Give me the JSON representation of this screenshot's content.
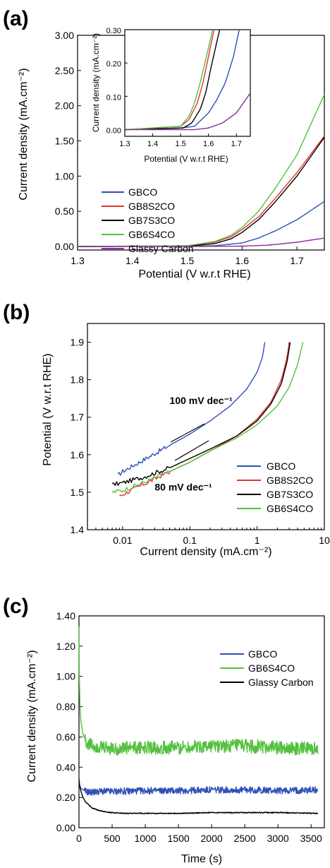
{
  "colors": {
    "GBCO": "#3050b8",
    "GB8S2CO": "#e83030",
    "GB7S3CO": "#000000",
    "GB6S4CO": "#55c040",
    "Glassy Carbon (a)": "#8a2a9a",
    "Glassy Carbon (c)": "#000000"
  },
  "chart_data": [
    {
      "panel_label": "(a)",
      "type": "line",
      "xlabel": "Potential (V w.r.t RHE)",
      "ylabel": "Current density (mA.cm⁻²)",
      "xlim": [
        1.3,
        1.75
      ],
      "ylim": [
        -0.05,
        3.0
      ],
      "xticks": [
        "1.3",
        "1.4",
        "1.5",
        "1.6",
        "1.7"
      ],
      "xtick_values": [
        1.3,
        1.4,
        1.5,
        1.6,
        1.7
      ],
      "yticks": [
        "0.00",
        "0.50",
        "1.00",
        "1.50",
        "2.00",
        "2.50",
        "3.00"
      ],
      "ytick_values": [
        0,
        0.5,
        1.0,
        1.5,
        2.0,
        2.5,
        3.0
      ],
      "legend_position": "middle-left",
      "series": [
        {
          "name": "GBCO",
          "x": [
            1.3,
            1.5,
            1.55,
            1.6,
            1.63,
            1.66,
            1.7,
            1.75
          ],
          "y": [
            0.0,
            0.005,
            0.01,
            0.05,
            0.12,
            0.22,
            0.38,
            0.64
          ]
        },
        {
          "name": "GB8S2CO",
          "x": [
            1.3,
            1.5,
            1.55,
            1.58,
            1.6,
            1.63,
            1.66,
            1.7,
            1.75
          ],
          "y": [
            0.0,
            0.01,
            0.06,
            0.14,
            0.24,
            0.42,
            0.68,
            1.05,
            1.57
          ]
        },
        {
          "name": "GB7S3CO",
          "x": [
            1.3,
            1.5,
            1.55,
            1.58,
            1.6,
            1.63,
            1.66,
            1.7,
            1.75
          ],
          "y": [
            0.0,
            0.005,
            0.04,
            0.11,
            0.2,
            0.38,
            0.63,
            1.0,
            1.55
          ]
        },
        {
          "name": "GB6S4CO",
          "x": [
            1.3,
            1.5,
            1.55,
            1.58,
            1.6,
            1.63,
            1.66,
            1.7,
            1.75
          ],
          "y": [
            0.0,
            0.01,
            0.07,
            0.16,
            0.27,
            0.5,
            0.82,
            1.3,
            2.16
          ]
        },
        {
          "name": "Glassy Carbon",
          "x": [
            1.3,
            1.5,
            1.6,
            1.65,
            1.7,
            1.75
          ],
          "y": [
            0.0,
            0.0,
            0.005,
            0.02,
            0.06,
            0.12
          ]
        }
      ],
      "inset": {
        "xlabel": "Potential (V w.r.t RHE)",
        "ylabel": "Current density (mA.cm⁻²)",
        "xlim": [
          1.3,
          1.75
        ],
        "ylim": [
          -0.02,
          0.3
        ],
        "xticks": [
          "1.3",
          "1.4",
          "1.5",
          "1.6",
          "1.7"
        ],
        "xtick_values": [
          1.3,
          1.4,
          1.5,
          1.6,
          1.7
        ],
        "yticks": [
          "0.00",
          "0.10",
          "0.20",
          "0.30"
        ],
        "ytick_values": [
          0,
          0.1,
          0.2,
          0.3
        ],
        "series": [
          {
            "name": "GBCO",
            "x": [
              1.3,
              1.5,
              1.55,
              1.6,
              1.63,
              1.66,
              1.69,
              1.71
            ],
            "y": [
              0.0,
              0.005,
              0.01,
              0.05,
              0.09,
              0.14,
              0.22,
              0.3
            ]
          },
          {
            "name": "GB8S2CO",
            "x": [
              1.3,
              1.5,
              1.53,
              1.56,
              1.58,
              1.6,
              1.62
            ],
            "y": [
              0.0,
              0.01,
              0.03,
              0.08,
              0.14,
              0.22,
              0.3
            ]
          },
          {
            "name": "GB7S3CO",
            "x": [
              1.3,
              1.51,
              1.54,
              1.57,
              1.59,
              1.61,
              1.64
            ],
            "y": [
              0.0,
              0.005,
              0.02,
              0.06,
              0.11,
              0.19,
              0.3
            ]
          },
          {
            "name": "GB6S4CO",
            "x": [
              1.3,
              1.5,
              1.53,
              1.55,
              1.57,
              1.59,
              1.615
            ],
            "y": [
              0.0,
              0.01,
              0.04,
              0.08,
              0.14,
              0.21,
              0.3
            ]
          },
          {
            "name": "Glassy Carbon",
            "x": [
              1.3,
              1.55,
              1.6,
              1.65,
              1.7,
              1.75
            ],
            "y": [
              0.0,
              0.0,
              0.005,
              0.02,
              0.05,
              0.11
            ]
          }
        ]
      }
    },
    {
      "panel_label": "(b)",
      "type": "line",
      "xscale": "log",
      "xlabel": "Current density (mA.cm⁻²)",
      "ylabel": "Potential (V w.r.t RHE)",
      "xlim": [
        0.003,
        10
      ],
      "ylim": [
        1.4,
        1.95
      ],
      "xticks": [
        "0.01",
        "0.1",
        "1",
        "10"
      ],
      "xtick_values": [
        0.01,
        0.1,
        1,
        10
      ],
      "yticks": [
        "1.4",
        "1.5",
        "1.6",
        "1.7",
        "1.8",
        "1.9"
      ],
      "ytick_values": [
        1.4,
        1.5,
        1.6,
        1.7,
        1.8,
        1.9
      ],
      "legend_position": "bottom-right",
      "annotations": [
        {
          "text": "100 mV dec⁻¹",
          "x": 0.05,
          "y": 1.735
        },
        {
          "text": "80 mV dec⁻¹",
          "x": 0.03,
          "y": 1.505
        }
      ],
      "series": [
        {
          "name": "GBCO",
          "x": [
            0.0085,
            0.01,
            0.02,
            0.05,
            0.1,
            0.2,
            0.4,
            0.7,
            1.0,
            1.2,
            1.3
          ],
          "y": [
            1.545,
            1.555,
            1.585,
            1.625,
            1.655,
            1.69,
            1.73,
            1.775,
            1.82,
            1.86,
            1.9
          ]
        },
        {
          "name": "GB8S2CO",
          "x": [
            0.009,
            0.02,
            0.05,
            0.1,
            0.2,
            0.5,
            1.0,
            1.6,
            2.3,
            2.8,
            3.0
          ],
          "y": [
            1.49,
            1.52,
            1.555,
            1.58,
            1.61,
            1.65,
            1.695,
            1.74,
            1.8,
            1.86,
            1.9
          ]
        },
        {
          "name": "GB7S3CO",
          "x": [
            0.007,
            0.01,
            0.02,
            0.05,
            0.1,
            0.2,
            0.5,
            1.0,
            1.6,
            2.3,
            2.8,
            3.1
          ],
          "y": [
            1.52,
            1.525,
            1.54,
            1.565,
            1.59,
            1.615,
            1.65,
            1.69,
            1.735,
            1.79,
            1.85,
            1.9
          ]
        },
        {
          "name": "GB6S4CO",
          "x": [
            0.007,
            0.01,
            0.02,
            0.05,
            0.1,
            0.2,
            0.5,
            1.0,
            2.0,
            3.0,
            4.0,
            4.8
          ],
          "y": [
            1.5,
            1.505,
            1.525,
            1.555,
            1.58,
            1.61,
            1.645,
            1.68,
            1.73,
            1.78,
            1.84,
            1.9
          ]
        }
      ]
    },
    {
      "panel_label": "(c)",
      "type": "line",
      "xlabel": "Time (s)",
      "ylabel": "Current density (mA.cm⁻²)",
      "xlim": [
        0,
        3700
      ],
      "ylim": [
        0,
        1.4
      ],
      "xticks": [
        "0",
        "500",
        "1000",
        "1500",
        "2000",
        "2500",
        "3000",
        "3500"
      ],
      "xtick_values": [
        0,
        500,
        1000,
        1500,
        2000,
        2500,
        3000,
        3500
      ],
      "yticks": [
        "0.00",
        "0.20",
        "0.40",
        "0.60",
        "0.80",
        "1.00",
        "1.20",
        "1.40"
      ],
      "ytick_values": [
        0,
        0.2,
        0.4,
        0.6,
        0.8,
        1.0,
        1.2,
        1.4
      ],
      "legend_position": "top-right",
      "series": [
        {
          "name": "GBCO",
          "x": [
            0,
            10,
            30,
            60,
            100,
            150,
            200,
            300,
            500,
            1000,
            1500,
            2000,
            2500,
            3000,
            3600
          ],
          "y": [
            0.3,
            0.28,
            0.26,
            0.25,
            0.24,
            0.235,
            0.235,
            0.24,
            0.24,
            0.245,
            0.245,
            0.25,
            0.25,
            0.245,
            0.25
          ]
        },
        {
          "name": "GB6S4CO",
          "x": [
            0,
            5,
            15,
            30,
            60,
            100,
            150,
            200,
            300,
            500,
            1000,
            1500,
            2000,
            2500,
            3000,
            3600
          ],
          "y": [
            1.33,
            1.0,
            0.8,
            0.7,
            0.62,
            0.57,
            0.55,
            0.54,
            0.53,
            0.52,
            0.53,
            0.53,
            0.54,
            0.54,
            0.53,
            0.52
          ]
        },
        {
          "name": "Glassy Carbon",
          "x": [
            0,
            10,
            30,
            60,
            100,
            150,
            200,
            300,
            400,
            500,
            700,
            1000,
            1500,
            2000,
            2500,
            3000,
            3600
          ],
          "y": [
            0.32,
            0.28,
            0.24,
            0.2,
            0.17,
            0.15,
            0.13,
            0.115,
            0.105,
            0.1,
            0.095,
            0.095,
            0.095,
            0.1,
            0.1,
            0.1,
            0.095
          ]
        }
      ]
    }
  ]
}
